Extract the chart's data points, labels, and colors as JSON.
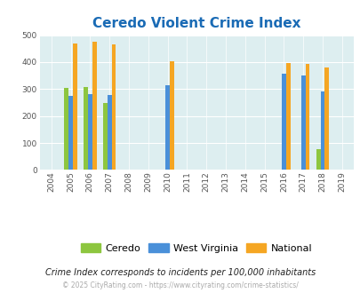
{
  "title": "Ceredo Violent Crime Index",
  "years": [
    2004,
    2005,
    2006,
    2007,
    2008,
    2009,
    2010,
    2011,
    2012,
    2013,
    2014,
    2015,
    2016,
    2017,
    2018,
    2019
  ],
  "ceredo": {
    "2005": 305,
    "2006": 308,
    "2007": 250,
    "2018": 77
  },
  "west_virginia": {
    "2005": 275,
    "2006": 281,
    "2007": 279,
    "2010": 315,
    "2016": 357,
    "2017": 350,
    "2018": 291
  },
  "national": {
    "2005": 469,
    "2006": 474,
    "2007": 467,
    "2010": 404,
    "2016": 397,
    "2017": 394,
    "2018": 381
  },
  "color_ceredo": "#8dc63f",
  "color_wv": "#4a90d9",
  "color_national": "#f5a623",
  "bg_color": "#ddeef0",
  "ylim": [
    0,
    500
  ],
  "yticks": [
    0,
    100,
    200,
    300,
    400,
    500
  ],
  "subtitle": "Crime Index corresponds to incidents per 100,000 inhabitants",
  "footer": "© 2025 CityRating.com - https://www.cityrating.com/crime-statistics/",
  "title_color": "#1a6bb5",
  "subtitle_color": "#222222",
  "footer_color": "#aaaaaa"
}
